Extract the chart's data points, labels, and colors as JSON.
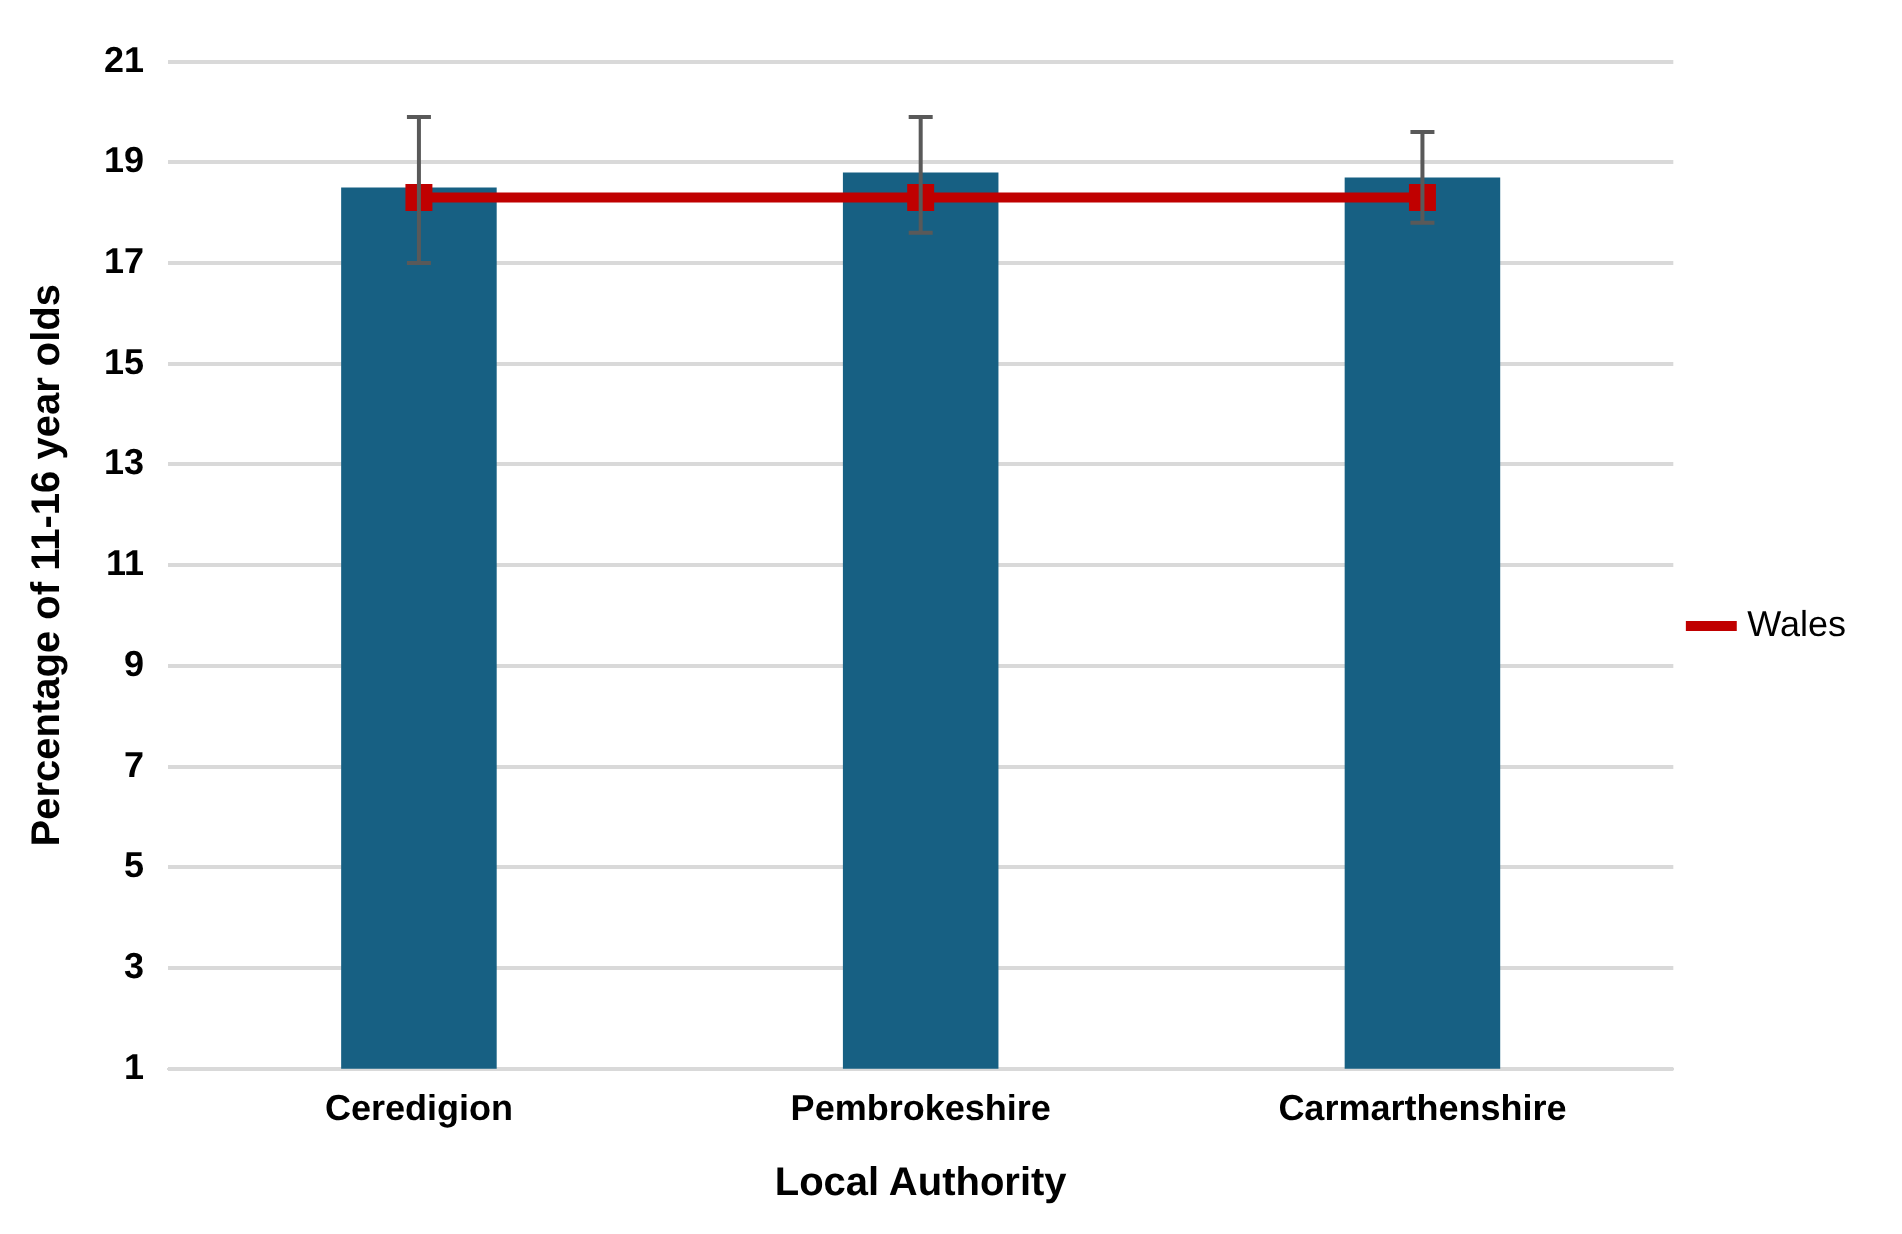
{
  "chart_data": {
    "type": "bar",
    "xlabel": "Local Authority",
    "ylabel": "Percentage of 11-16 year olds",
    "categories": [
      "Ceredigion",
      "Pembrokeshire",
      "Carmarthenshire"
    ],
    "series": [
      {
        "color": "#176083",
        "values": [
          18.5,
          18.8,
          18.7
        ],
        "errors": [
          [
            17.0,
            19.9
          ],
          [
            17.6,
            19.9
          ],
          [
            17.8,
            19.6
          ]
        ]
      },
      {
        "type": "line",
        "name": "Wales",
        "color": "#c00000",
        "values": [
          18.3,
          18.3,
          18.3
        ],
        "marker": "square"
      }
    ],
    "ylim": [
      1,
      21
    ],
    "yticks": [
      1,
      3,
      5,
      7,
      9,
      11,
      13,
      15,
      17,
      19,
      21
    ],
    "grid": "y",
    "legend": "right"
  }
}
